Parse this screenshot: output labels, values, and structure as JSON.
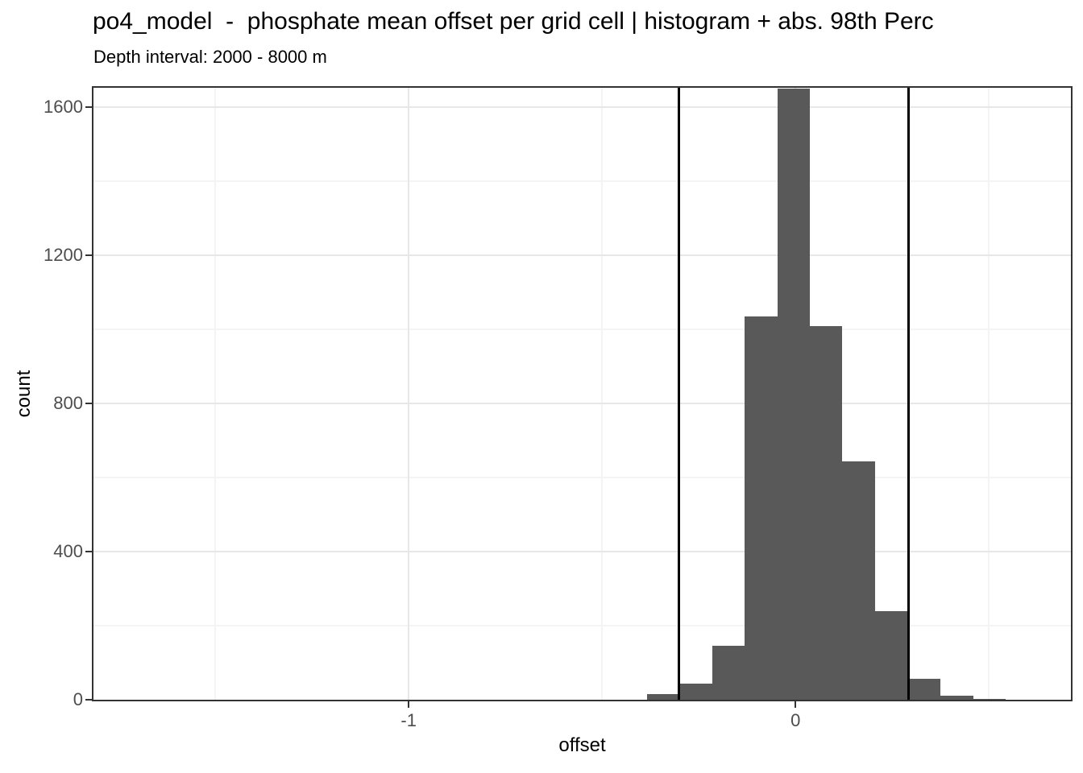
{
  "chart_data": {
    "type": "bar",
    "subtype": "histogram",
    "title": "po4_model  -  phosphate mean offset per grid cell | histogram + abs. 98th Perc",
    "subtitle": "Depth interval: 2000 - 8000 m",
    "xlabel": "offset",
    "ylabel": "count",
    "xlim": [
      -1.815,
      0.712
    ],
    "ylim": [
      0,
      1652
    ],
    "grid": "major-and-minor",
    "legend": "none",
    "bar_color": "#595959",
    "vline_color": "#000000",
    "x_major_ticks": [
      {
        "value": -1,
        "label": "-1"
      },
      {
        "value": 0,
        "label": "0"
      }
    ],
    "y_major_ticks": [
      {
        "value": 0,
        "label": "0"
      },
      {
        "value": 400,
        "label": "400"
      },
      {
        "value": 800,
        "label": "800"
      },
      {
        "value": 1200,
        "label": "1200"
      },
      {
        "value": 1600,
        "label": "1600"
      }
    ],
    "x_minor_ticks": [
      -1.5,
      -0.5,
      0.5
    ],
    "y_minor_ticks": [
      200,
      600,
      1000,
      1400
    ],
    "binwidth": 0.0843,
    "bins": [
      {
        "x0": -0.384,
        "x1": -0.3,
        "count": 15
      },
      {
        "x0": -0.3,
        "x1": -0.216,
        "count": 43
      },
      {
        "x0": -0.216,
        "x1": -0.131,
        "count": 145
      },
      {
        "x0": -0.131,
        "x1": -0.047,
        "count": 1035
      },
      {
        "x0": -0.047,
        "x1": 0.037,
        "count": 1650
      },
      {
        "x0": 0.037,
        "x1": 0.121,
        "count": 1008
      },
      {
        "x0": 0.121,
        "x1": 0.206,
        "count": 644
      },
      {
        "x0": 0.206,
        "x1": 0.29,
        "count": 240
      },
      {
        "x0": 0.29,
        "x1": 0.374,
        "count": 56
      },
      {
        "x0": 0.374,
        "x1": 0.459,
        "count": 10
      },
      {
        "x0": 0.459,
        "x1": 0.543,
        "count": 3
      }
    ],
    "peak_bin_clipped_at_panel_top": true,
    "percentile_vlines": [
      -0.302,
      0.293
    ]
  }
}
